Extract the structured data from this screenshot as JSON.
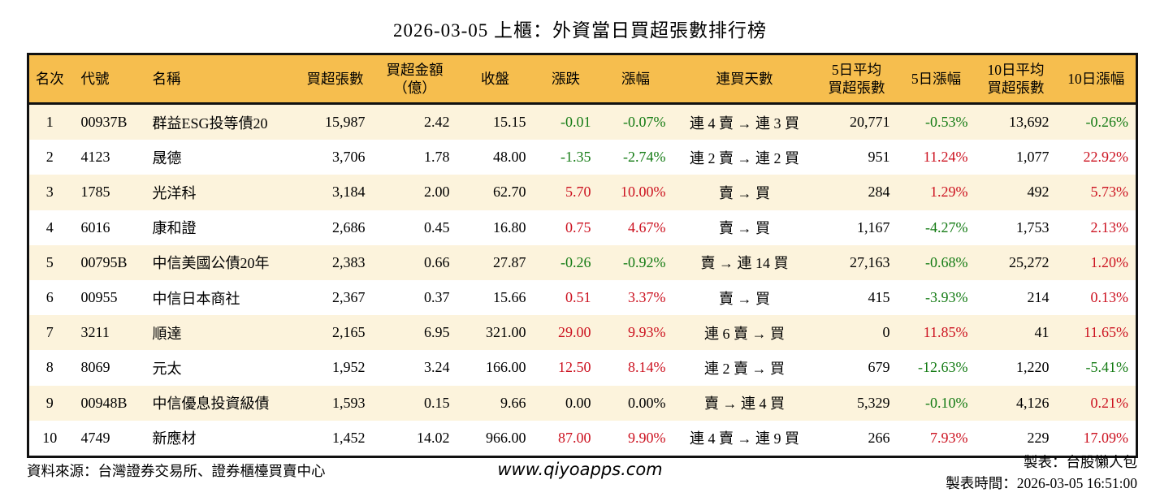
{
  "title": "2026-03-05 上櫃：外資當日買超張數排行榜",
  "colors": {
    "header_bg": "#f6be4e",
    "row_stripe_bg": "#fcf3dc",
    "row_plain_bg": "#ffffff",
    "positive_red": "#cc1220",
    "negative_green": "#147b14",
    "border_black": "#111111"
  },
  "chart_data": {
    "type": "table",
    "title": "2026-03-05 上櫃：外資當日買超張數排行榜",
    "columns": [
      "名次",
      "代號",
      "名稱",
      "買超張數",
      "買超金額\n（億）",
      "收盤",
      "漲跌",
      "漲幅",
      "連買天數",
      "5日平均\n買超張數",
      "5日漲幅",
      "10日平均\n買超張數",
      "10日漲幅"
    ],
    "rows": [
      {
        "cells": [
          "1",
          "00937B",
          "群益ESG投等債20",
          "15,987",
          "2.42",
          "15.15",
          "-0.01",
          "-0.07%",
          "連 4 賣 → 連 3 買",
          "20,771",
          "-0.53%",
          "13,692",
          "-0.26%"
        ],
        "tones": [
          "",
          "",
          "",
          "",
          "",
          "",
          "dn",
          "dn",
          "",
          "",
          "dn",
          "",
          "dn"
        ]
      },
      {
        "cells": [
          "2",
          "4123",
          "晟德",
          "3,706",
          "1.78",
          "48.00",
          "-1.35",
          "-2.74%",
          "連 2 賣 → 連 2 買",
          "951",
          "11.24%",
          "1,077",
          "22.92%"
        ],
        "tones": [
          "",
          "",
          "",
          "",
          "",
          "",
          "dn",
          "dn",
          "",
          "",
          "up",
          "",
          "up"
        ]
      },
      {
        "cells": [
          "3",
          "1785",
          "光洋科",
          "3,184",
          "2.00",
          "62.70",
          "5.70",
          "10.00%",
          "賣 → 買",
          "284",
          "1.29%",
          "492",
          "5.73%"
        ],
        "tones": [
          "",
          "",
          "",
          "",
          "",
          "",
          "up",
          "up",
          "",
          "",
          "up",
          "",
          "up"
        ]
      },
      {
        "cells": [
          "4",
          "6016",
          "康和證",
          "2,686",
          "0.45",
          "16.80",
          "0.75",
          "4.67%",
          "賣 → 買",
          "1,167",
          "-4.27%",
          "1,753",
          "2.13%"
        ],
        "tones": [
          "",
          "",
          "",
          "",
          "",
          "",
          "up",
          "up",
          "",
          "",
          "dn",
          "",
          "up"
        ]
      },
      {
        "cells": [
          "5",
          "00795B",
          "中信美國公債20年",
          "2,383",
          "0.66",
          "27.87",
          "-0.26",
          "-0.92%",
          "賣 → 連 14 買",
          "27,163",
          "-0.68%",
          "25,272",
          "1.20%"
        ],
        "tones": [
          "",
          "",
          "",
          "",
          "",
          "",
          "dn",
          "dn",
          "",
          "",
          "dn",
          "",
          "up"
        ]
      },
      {
        "cells": [
          "6",
          "00955",
          "中信日本商社",
          "2,367",
          "0.37",
          "15.66",
          "0.51",
          "3.37%",
          "賣 → 買",
          "415",
          "-3.93%",
          "214",
          "0.13%"
        ],
        "tones": [
          "",
          "",
          "",
          "",
          "",
          "",
          "up",
          "up",
          "",
          "",
          "dn",
          "",
          "up"
        ]
      },
      {
        "cells": [
          "7",
          "3211",
          "順達",
          "2,165",
          "6.95",
          "321.00",
          "29.00",
          "9.93%",
          "連 6 賣 → 買",
          "0",
          "11.85%",
          "41",
          "11.65%"
        ],
        "tones": [
          "",
          "",
          "",
          "",
          "",
          "",
          "up",
          "up",
          "",
          "",
          "up",
          "",
          "up"
        ]
      },
      {
        "cells": [
          "8",
          "8069",
          "元太",
          "1,952",
          "3.24",
          "166.00",
          "12.50",
          "8.14%",
          "連 2 賣 → 買",
          "679",
          "-12.63%",
          "1,220",
          "-5.41%"
        ],
        "tones": [
          "",
          "",
          "",
          "",
          "",
          "",
          "up",
          "up",
          "",
          "",
          "dn",
          "",
          "dn"
        ]
      },
      {
        "cells": [
          "9",
          "00948B",
          "中信優息投資級債",
          "1,593",
          "0.15",
          "9.66",
          "0.00",
          "0.00%",
          "賣 → 連 4 買",
          "5,329",
          "-0.10%",
          "4,126",
          "0.21%"
        ],
        "tones": [
          "",
          "",
          "",
          "",
          "",
          "",
          "",
          "",
          "",
          "",
          "dn",
          "",
          "up"
        ]
      },
      {
        "cells": [
          "10",
          "4749",
          "新應材",
          "1,452",
          "14.02",
          "966.00",
          "87.00",
          "9.90%",
          "連 4 賣 → 連 9 買",
          "266",
          "7.93%",
          "229",
          "17.09%"
        ],
        "tones": [
          "",
          "",
          "",
          "",
          "",
          "",
          "up",
          "up",
          "",
          "",
          "up",
          "",
          "up"
        ]
      }
    ]
  },
  "footer": {
    "source": "資料來源：台灣證券交易所、證券櫃檯買賣中心",
    "website": "www.qiyoapps.com",
    "author": "製表：台股懶人包",
    "generated": "製表時間：2026-03-05 16:51:00"
  }
}
